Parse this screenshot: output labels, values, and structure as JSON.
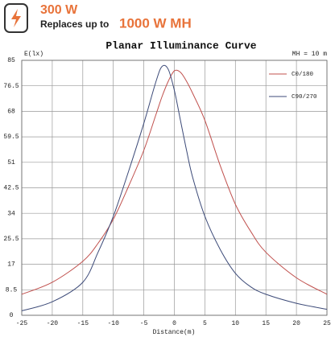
{
  "header": {
    "power": "300 W",
    "replaces_text": "Replaces up to",
    "replaces_value": "1000 W MH"
  },
  "chart_data": {
    "type": "line",
    "title": "Planar Illuminance Curve",
    "annotation": "MH = 10 m",
    "ylabel": "E(lx)",
    "xlabel": "Distance(m)",
    "x": [
      -25,
      -20,
      -15,
      -12.5,
      -10,
      -7.5,
      -5,
      -3,
      -2,
      -1,
      0,
      1,
      2,
      3,
      5,
      7.5,
      10,
      12.5,
      15,
      20,
      25
    ],
    "series": [
      {
        "name": "C0/180",
        "color": "#c0504d",
        "values": [
          7,
          11,
          18,
          24,
          32,
          43,
          55,
          67,
          73,
          78,
          81.5,
          81,
          78,
          74,
          65,
          50,
          37,
          28,
          21,
          12.5,
          7
        ]
      },
      {
        "name": "C90/270",
        "color": "#3c4a78",
        "values": [
          1.5,
          4.5,
          11,
          21,
          33,
          48,
          64,
          78,
          83,
          82,
          75,
          65,
          55,
          46,
          33,
          22,
          14,
          9.5,
          7,
          4,
          2
        ]
      }
    ],
    "xlim": [
      -25,
      25
    ],
    "xticks": [
      -25,
      -20,
      -15,
      -10,
      -5,
      0,
      5,
      10,
      15,
      20,
      25
    ],
    "ylim": [
      0,
      85
    ],
    "yticks": [
      0,
      8.5,
      17,
      25.5,
      34,
      42.5,
      51,
      59.5,
      68,
      76.5,
      85
    ],
    "grid": true,
    "legend": "upper right"
  }
}
